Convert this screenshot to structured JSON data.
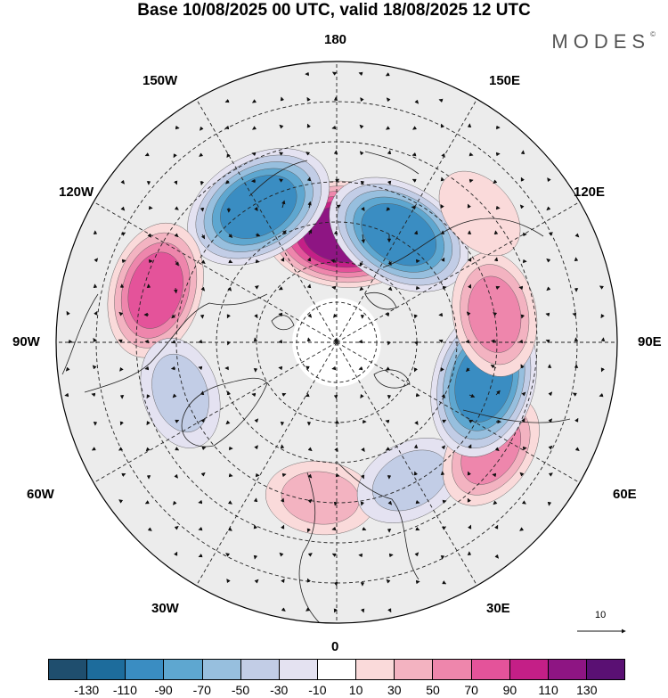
{
  "title": "Base 10/08/2025 00 UTC, valid 18/08/2025 12 UTC",
  "brand": "MODES",
  "brand_mark": "©",
  "lon_labels": {
    "l180": "180",
    "l150w": "150W",
    "l150e": "150E",
    "l120w": "120W",
    "l120e": "120E",
    "l90w": "90W",
    "l90e": "90E",
    "l60w": "60W",
    "l60e": "60E",
    "l30w": "30W",
    "l30e": "30E",
    "l0": "0"
  },
  "reference_vector": {
    "label": "10",
    "magnitude": 10
  },
  "colorbar": {
    "ticks": [
      "-130",
      "-110",
      "-90",
      "-70",
      "-50",
      "-30",
      "-10",
      "10",
      "30",
      "50",
      "70",
      "90",
      "110",
      "130"
    ],
    "colors": [
      "#1f4e6e",
      "#1d6c9c",
      "#3a8dc2",
      "#5ea7d0",
      "#97bfde",
      "#c2cde6",
      "#e4e2f1",
      "#ffffff",
      "#fadada",
      "#f3b3c1",
      "#ee86ac",
      "#e4539a",
      "#c41f87",
      "#8e1583",
      "#5a1073"
    ]
  },
  "anomaly_centers": [
    {
      "lon": 176,
      "lat": 63,
      "value": 115
    },
    {
      "lon": 150,
      "lat": 59,
      "value": -100
    },
    {
      "lon": -150,
      "lat": 51,
      "value": -105
    },
    {
      "lon": -106,
      "lat": 43,
      "value": 80
    },
    {
      "lon": -72,
      "lat": 49,
      "value": -40
    },
    {
      "lon": -6,
      "lat": 51,
      "value": 35
    },
    {
      "lon": 28,
      "lat": 51,
      "value": -40
    },
    {
      "lon": 55,
      "lat": 43,
      "value": 55
    },
    {
      "lon": 75,
      "lat": 52,
      "value": -105
    },
    {
      "lon": 100,
      "lat": 50,
      "value": 60
    },
    {
      "lon": 132,
      "lat": 42,
      "value": 15
    }
  ]
}
